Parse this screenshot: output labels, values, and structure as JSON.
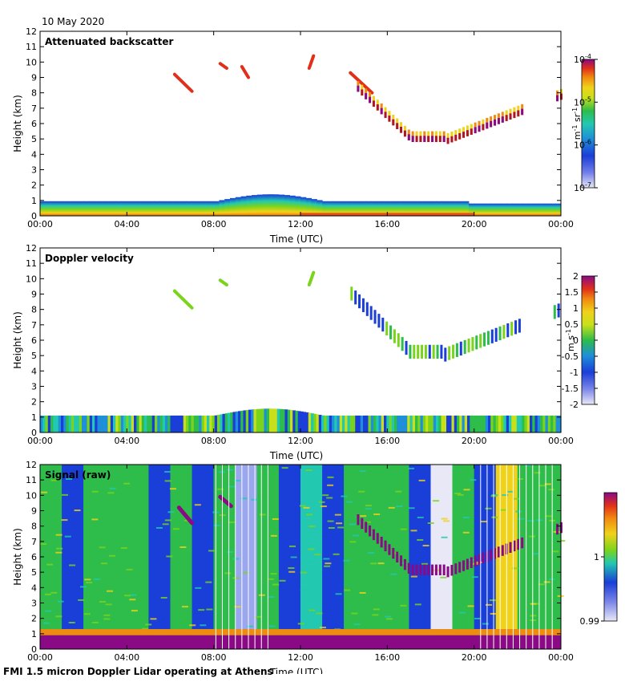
{
  "date_label": "10 May 2020",
  "footer": "FMI 1.5 micron Doppler Lidar operating at Athens",
  "colors": {
    "colormap": [
      "#e8e8f6",
      "#9aa6ee",
      "#3a4fe0",
      "#1a3ed8",
      "#1e8fd8",
      "#22c8b0",
      "#2ebc4a",
      "#7ad41c",
      "#c8e01a",
      "#f0d21a",
      "#f08a10",
      "#e0301a",
      "#b0142a",
      "#8a0a86"
    ]
  },
  "chart_data": [
    {
      "type": "heatmap",
      "title": "Attenuated backscatter",
      "xlabel": "Time (UTC)",
      "ylabel": "Height (km)",
      "xticks": [
        "00:00",
        "04:00",
        "08:00",
        "12:00",
        "16:00",
        "20:00",
        "00:00"
      ],
      "yticks": [
        "0",
        "1",
        "2",
        "3",
        "4",
        "5",
        "6",
        "7",
        "8",
        "9",
        "10",
        "11",
        "12"
      ],
      "xlim_hours": [
        0,
        24
      ],
      "ylim_km": [
        0,
        12
      ],
      "colorbar": {
        "ticks": [
          "10",
          "10",
          "10",
          "10"
        ],
        "exponents": [
          "-4",
          "-5",
          "-6",
          "-7"
        ],
        "label": "m",
        "label_sup1": "-1",
        "mid": " sr",
        "label_sup2": "-1",
        "range": [
          1e-07,
          0.0001
        ],
        "scale": "log"
      }
    },
    {
      "type": "heatmap",
      "title": "Doppler velocity",
      "xlabel": "Time (UTC)",
      "ylabel": "Height (km)",
      "xticks": [
        "00:00",
        "04:00",
        "08:00",
        "12:00",
        "16:00",
        "20:00",
        "00:00"
      ],
      "yticks": [
        "0",
        "1",
        "2",
        "3",
        "4",
        "5",
        "6",
        "7",
        "8",
        "9",
        "10",
        "11",
        "12"
      ],
      "xlim_hours": [
        0,
        24
      ],
      "ylim_km": [
        0,
        12
      ],
      "colorbar": {
        "ticks": [
          "2",
          "1.5",
          "1",
          "0.5",
          "0",
          "-0.5",
          "-1",
          "-1.5",
          "-2"
        ],
        "label": "m s",
        "label_sup": "-1",
        "range": [
          -2,
          2
        ]
      }
    },
    {
      "type": "heatmap",
      "title": "Signal (raw)",
      "xlabel": "Time (UTC)",
      "ylabel": "Height (km)",
      "xticks": [
        "00:00",
        "04:00",
        "08:00",
        "12:00",
        "16:00",
        "20:00",
        "00:00"
      ],
      "yticks": [
        "0",
        "1",
        "2",
        "3",
        "4",
        "5",
        "6",
        "7",
        "8",
        "9",
        "10",
        "11",
        "12"
      ],
      "xlim_hours": [
        0,
        24
      ],
      "ylim_km": [
        0,
        12
      ],
      "colorbar": {
        "ticks": [
          "1",
          "0.99"
        ],
        "range": [
          0.99,
          1.01
        ]
      }
    }
  ]
}
